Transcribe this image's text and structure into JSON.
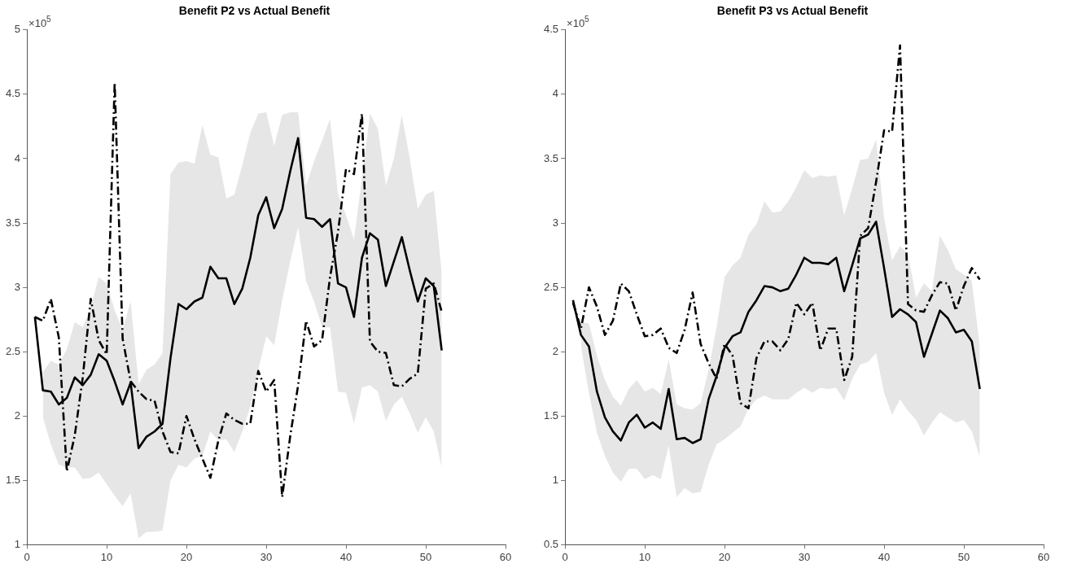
{
  "chart_data": [
    {
      "type": "line",
      "title": "Benefit P2 vs Actual Benefit",
      "annotations": [
        "×10$^{5}$"
      ],
      "grid": false,
      "legend": false,
      "marker": "none",
      "x": [
        1,
        2,
        3,
        4,
        5,
        6,
        7,
        8,
        9,
        10,
        11,
        12,
        13,
        14,
        15,
        16,
        17,
        18,
        19,
        20,
        21,
        22,
        23,
        24,
        25,
        26,
        27,
        28,
        29,
        30,
        31,
        32,
        33,
        34,
        35,
        36,
        37,
        38,
        39,
        40,
        41,
        42,
        43,
        44,
        45,
        46,
        47,
        48,
        49,
        50,
        51,
        52
      ],
      "xlim": [
        0,
        60
      ],
      "xticks": [
        0,
        10,
        20,
        30,
        40,
        50,
        60
      ],
      "ylim": [
        1,
        5
      ],
      "yticks": [
        1,
        1.5,
        2,
        2.5,
        3,
        3.5,
        4,
        4.5,
        5
      ],
      "series": [
        {
          "color": "#000000",
          "line_style": "solid",
          "values": [
            2.77,
            2.2,
            2.19,
            2.09,
            2.14,
            2.3,
            2.24,
            2.32,
            2.48,
            2.43,
            2.27,
            2.09,
            2.26,
            1.75,
            1.84,
            1.88,
            1.94,
            2.45,
            2.87,
            2.83,
            2.89,
            2.92,
            3.16,
            3.07,
            3.07,
            2.87,
            2.99,
            3.23,
            3.56,
            3.7,
            3.46,
            3.61,
            3.9,
            4.16,
            3.54,
            3.53,
            3.47,
            3.53,
            3.03,
            3.0,
            2.77,
            3.23,
            3.42,
            3.37,
            3.01,
            3.2,
            3.39,
            3.13,
            2.89,
            3.07,
            3.01,
            2.51
          ],
          "upper": [
            null,
            2.34,
            2.43,
            2.4,
            2.52,
            2.73,
            2.69,
            2.84,
            3.08,
            3.03,
            2.82,
            2.67,
            2.89,
            2.25,
            2.36,
            2.4,
            2.49,
            3.88,
            3.97,
            3.98,
            3.96,
            4.26,
            4.03,
            4.01,
            3.69,
            3.72,
            3.95,
            4.2,
            4.35,
            4.36,
            4.1,
            4.34,
            4.36,
            4.36,
            3.79,
            3.98,
            4.14,
            4.31,
            3.72,
            3.56,
            3.37,
            3.85,
            4.35,
            4.23,
            3.79,
            4.0,
            4.34,
            4.0,
            3.61,
            3.72,
            3.75,
            3.11
          ],
          "lower": [
            null,
            1.99,
            1.78,
            1.62,
            1.6,
            1.6,
            1.51,
            1.52,
            1.56,
            1.47,
            1.38,
            1.3,
            1.4,
            1.05,
            1.1,
            1.1,
            1.11,
            1.5,
            1.62,
            1.6,
            1.67,
            1.69,
            1.88,
            1.81,
            1.82,
            1.72,
            1.88,
            2.07,
            2.36,
            2.62,
            2.55,
            2.9,
            3.2,
            3.47,
            3.05,
            2.89,
            2.69,
            2.69,
            2.19,
            2.18,
            1.94,
            2.22,
            2.24,
            2.19,
            1.96,
            2.09,
            2.15,
            2.02,
            1.87,
            1.99,
            1.88,
            1.6
          ]
        },
        {
          "color": "#000000",
          "line_style": "dashed",
          "values": [
            2.77,
            2.74,
            2.91,
            2.61,
            1.57,
            1.85,
            2.3,
            2.91,
            2.59,
            2.48,
            4.59,
            2.6,
            2.27,
            2.19,
            2.13,
            2.12,
            1.88,
            1.72,
            1.71,
            2.0,
            1.82,
            1.67,
            1.52,
            1.81,
            2.02,
            1.97,
            1.94,
            1.94,
            2.35,
            2.19,
            2.28,
            1.37,
            1.84,
            2.24,
            2.74,
            2.54,
            2.59,
            3.08,
            3.43,
            3.92,
            3.88,
            4.35,
            2.58,
            2.5,
            2.49,
            2.24,
            2.23,
            2.29,
            2.33,
            2.99,
            3.03,
            2.81
          ]
        }
      ]
    },
    {
      "type": "line",
      "title": "Benefit P3 vs Actual Benefit",
      "annotations": [
        "×10$^{5}$"
      ],
      "grid": false,
      "legend": false,
      "marker": "none",
      "x": [
        1,
        2,
        3,
        4,
        5,
        6,
        7,
        8,
        9,
        10,
        11,
        12,
        13,
        14,
        15,
        16,
        17,
        18,
        19,
        20,
        21,
        22,
        23,
        24,
        25,
        26,
        27,
        28,
        29,
        30,
        31,
        32,
        33,
        34,
        35,
        36,
        37,
        38,
        39,
        40,
        41,
        42,
        43,
        44,
        45,
        46,
        47,
        48,
        49,
        50,
        51,
        52
      ],
      "xlim": [
        0,
        60
      ],
      "xticks": [
        0,
        10,
        20,
        30,
        40,
        50,
        60
      ],
      "ylim": [
        0.5,
        4.5
      ],
      "yticks": [
        0.5,
        1,
        1.5,
        2,
        2.5,
        3,
        3.5,
        4,
        4.5
      ],
      "series": [
        {
          "color": "#000000",
          "line_style": "solid",
          "values": [
            2.4,
            2.13,
            2.04,
            1.69,
            1.49,
            1.38,
            1.31,
            1.45,
            1.51,
            1.41,
            1.45,
            1.4,
            1.71,
            1.32,
            1.33,
            1.29,
            1.32,
            1.63,
            1.81,
            2.03,
            2.12,
            2.15,
            2.31,
            2.4,
            2.51,
            2.5,
            2.47,
            2.49,
            2.6,
            2.73,
            2.69,
            2.69,
            2.68,
            2.73,
            2.47,
            2.67,
            2.88,
            2.91,
            3.01,
            2.65,
            2.27,
            2.33,
            2.29,
            2.23,
            1.96,
            2.14,
            2.32,
            2.26,
            2.15,
            2.17,
            2.08,
            1.71
          ],
          "upper": [
            null,
            2.23,
            2.22,
            1.97,
            1.78,
            1.65,
            1.58,
            1.71,
            1.78,
            1.69,
            1.72,
            1.67,
            1.94,
            1.59,
            1.56,
            1.55,
            1.6,
            1.86,
            2.19,
            2.58,
            2.67,
            2.73,
            2.91,
            2.99,
            3.17,
            3.08,
            3.09,
            3.17,
            3.28,
            3.41,
            3.35,
            3.37,
            3.36,
            3.37,
            3.06,
            3.27,
            3.49,
            3.5,
            3.65,
            3.04,
            2.71,
            2.82,
            2.76,
            2.42,
            2.53,
            2.47,
            2.9,
            2.79,
            2.64,
            2.6,
            2.55,
            2.04
          ],
          "lower": [
            null,
            2.04,
            1.68,
            1.37,
            1.19,
            1.06,
            0.99,
            1.09,
            1.09,
            1.01,
            1.04,
            1.01,
            1.27,
            0.87,
            0.94,
            0.9,
            0.91,
            1.12,
            1.28,
            1.32,
            1.37,
            1.42,
            1.56,
            1.63,
            1.66,
            1.63,
            1.63,
            1.63,
            1.68,
            1.72,
            1.68,
            1.72,
            1.71,
            1.72,
            1.62,
            1.79,
            1.9,
            1.92,
            1.99,
            1.68,
            1.51,
            1.63,
            1.54,
            1.47,
            1.35,
            1.45,
            1.53,
            1.49,
            1.45,
            1.47,
            1.38,
            1.18
          ]
        },
        {
          "color": "#000000",
          "line_style": "dashed",
          "values": [
            2.38,
            2.18,
            2.5,
            2.35,
            2.13,
            2.24,
            2.53,
            2.47,
            2.29,
            2.12,
            2.13,
            2.18,
            2.03,
            1.99,
            2.17,
            2.46,
            2.06,
            1.91,
            1.79,
            2.06,
            1.97,
            1.6,
            1.56,
            1.95,
            2.08,
            2.08,
            2.01,
            2.1,
            2.38,
            2.29,
            2.38,
            2.01,
            2.18,
            2.18,
            1.78,
            1.96,
            2.9,
            2.96,
            3.32,
            3.72,
            3.71,
            4.38,
            2.37,
            2.32,
            2.31,
            2.44,
            2.54,
            2.53,
            2.32,
            2.51,
            2.65,
            2.56
          ]
        }
      ]
    }
  ]
}
